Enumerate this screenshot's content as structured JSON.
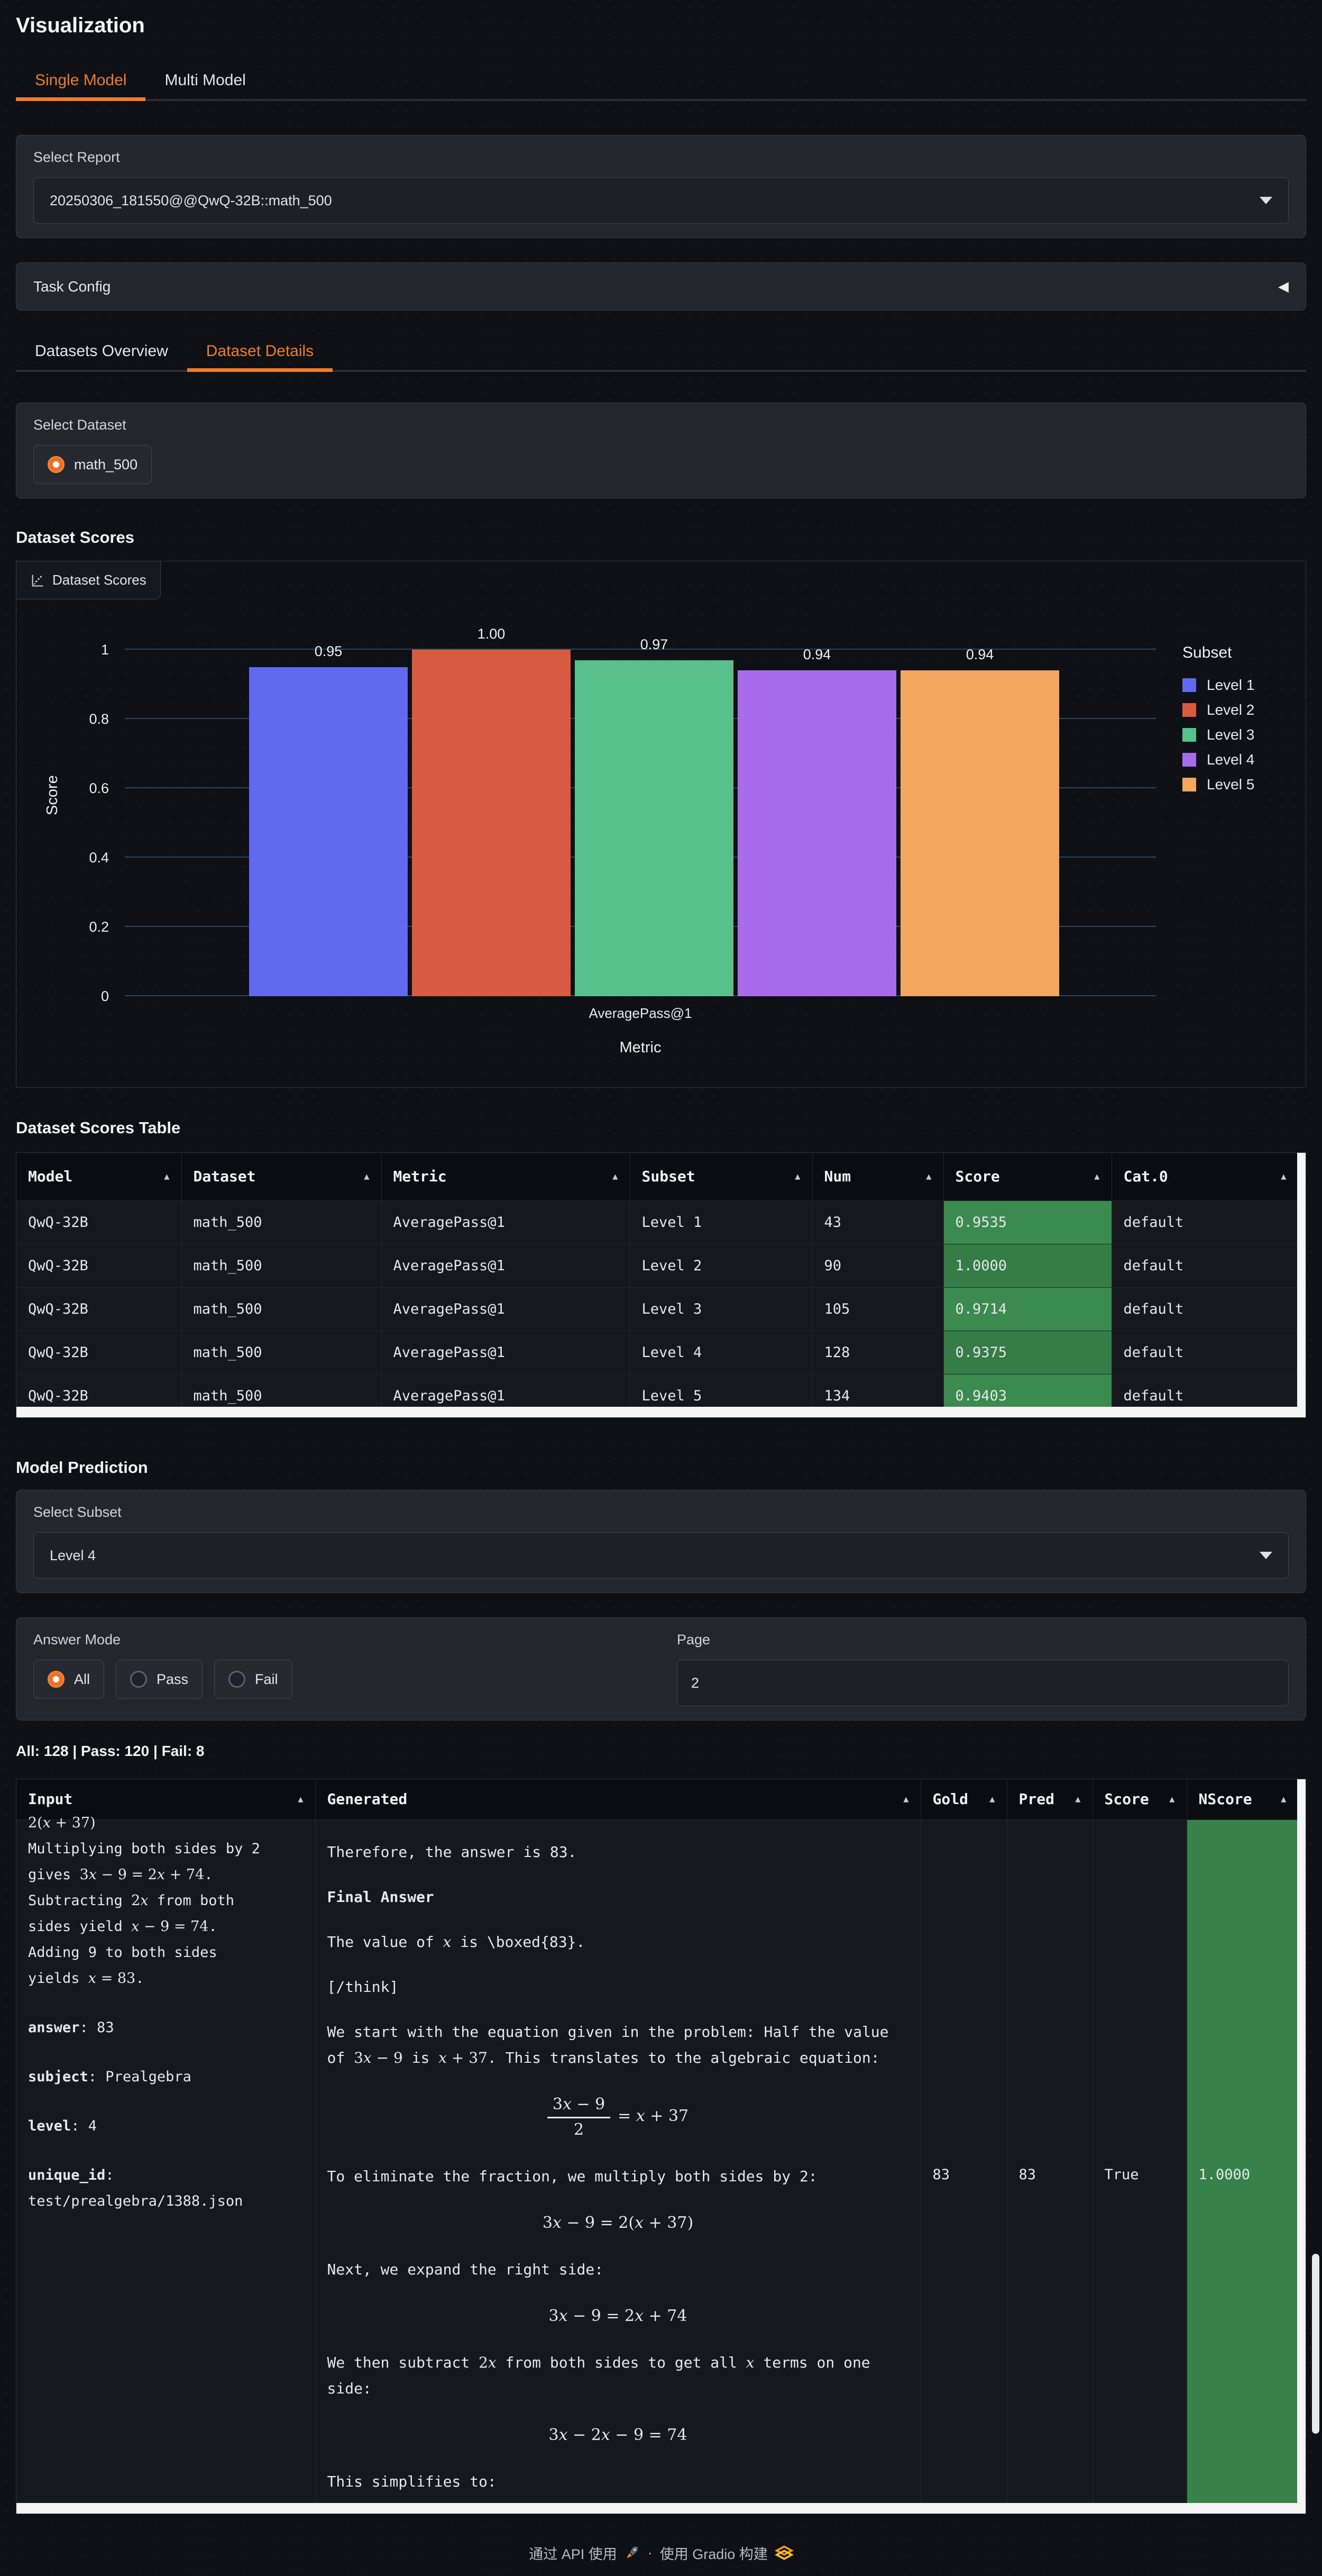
{
  "header": {
    "title": "Visualization",
    "tabs": [
      "Single Model",
      "Multi Model"
    ],
    "active_tab": 0
  },
  "report": {
    "label": "Select Report",
    "value": "20250306_181550@@QwQ-32B::math_500"
  },
  "task_config": {
    "label": "Task Config",
    "collapse_icon": "◀"
  },
  "detail_tabs": {
    "tabs": [
      "Datasets Overview",
      "Dataset Details"
    ],
    "active": 1
  },
  "dataset_select": {
    "label": "Select Dataset",
    "options": [
      {
        "label": "math_500",
        "selected": true
      }
    ]
  },
  "scores_section": {
    "heading": "Dataset Scores",
    "panel_tab": "Dataset Scores"
  },
  "chart_data": {
    "type": "bar",
    "title": "Dataset Scores",
    "categories": [
      "AveragePass@1"
    ],
    "xlabel": "Metric",
    "ylabel": "Score",
    "ylim": [
      0,
      1
    ],
    "yticks": [
      "0",
      "0.2",
      "0.4",
      "0.6",
      "0.8",
      "1"
    ],
    "grid": true,
    "legend_title": "Subset",
    "legend_position": "right",
    "series": [
      {
        "name": "Level 1",
        "values": [
          0.95
        ],
        "label": "0.95",
        "color": "#6069f0"
      },
      {
        "name": "Level 2",
        "values": [
          1.0
        ],
        "label": "1.00",
        "color": "#d85b41"
      },
      {
        "name": "Level 3",
        "values": [
          0.97
        ],
        "label": "0.97",
        "color": "#58c08b"
      },
      {
        "name": "Level 4",
        "values": [
          0.94
        ],
        "label": "0.94",
        "color": "#a76cec"
      },
      {
        "name": "Level 5",
        "values": [
          0.94
        ],
        "label": "0.94",
        "color": "#f3a660"
      }
    ]
  },
  "scores_table": {
    "heading": "Dataset Scores Table",
    "columns": [
      "Model",
      "Dataset",
      "Metric",
      "Subset",
      "Num",
      "Score",
      "Cat.0"
    ],
    "sort_icon": "▲",
    "rows": [
      [
        "QwQ-32B",
        "math_500",
        "AveragePass@1",
        "Level 1",
        "43",
        "0.9535",
        "default"
      ],
      [
        "QwQ-32B",
        "math_500",
        "AveragePass@1",
        "Level 2",
        "90",
        "1.0000",
        "default"
      ],
      [
        "QwQ-32B",
        "math_500",
        "AveragePass@1",
        "Level 3",
        "105",
        "0.9714",
        "default"
      ],
      [
        "QwQ-32B",
        "math_500",
        "AveragePass@1",
        "Level 4",
        "128",
        "0.9375",
        "default"
      ],
      [
        "QwQ-32B",
        "math_500",
        "AveragePass@1",
        "Level 5",
        "134",
        "0.9403",
        "default"
      ]
    ]
  },
  "prediction": {
    "heading": "Model Prediction",
    "subset_label": "Select Subset",
    "subset_value": "Level 4",
    "answer_mode_label": "Answer Mode",
    "answer_modes": [
      "All",
      "Pass",
      "Fail"
    ],
    "selected_mode": 0,
    "page_label": "Page",
    "page_value": "2",
    "stats": "All: 128 | Pass: 120 | Fail: 8"
  },
  "prediction_table": {
    "columns": [
      "Input",
      "Generated",
      "Gold",
      "Pred",
      "Score",
      "NScore"
    ],
    "sort_icon": "▲",
    "row": {
      "input_blocks": [
        {
          "type": "clip",
          "text": "§2(x + 37)§"
        },
        {
          "type": "line",
          "text": "Multiplying both sides by 2"
        },
        {
          "type": "line",
          "text": "gives §3x − 9 = 2x + 74§."
        },
        {
          "type": "line",
          "text": "Subtracting §2x§ from both"
        },
        {
          "type": "line",
          "text": "sides yield §x − 9 = 74§."
        },
        {
          "type": "line",
          "text": "Adding 9 to both sides"
        },
        {
          "type": "line",
          "text": "yields §x = ⟦83⟧§."
        },
        {
          "type": "gap"
        },
        {
          "type": "line",
          "text": "**answer**: 83"
        },
        {
          "type": "gap"
        },
        {
          "type": "line",
          "text": "**subject**: Prealgebra"
        },
        {
          "type": "gap"
        },
        {
          "type": "line",
          "text": "**level**: 4"
        },
        {
          "type": "gap"
        },
        {
          "type": "line",
          "text": "**unique_id**:"
        },
        {
          "type": "line",
          "text": "test/prealgebra/1388.json"
        }
      ],
      "generated_blocks": [
        {
          "type": "p",
          "text": "Therefore, the answer is 83."
        },
        {
          "type": "p",
          "text": "**Final Answer**"
        },
        {
          "type": "p",
          "text": "The value of §x§ is \\boxed{83}."
        },
        {
          "type": "p",
          "text": "[/think]"
        },
        {
          "type": "p",
          "text": "We start with the equation given in the problem: Half the value of §3x − 9§ is §x + 37§. This translates to the algebraic equation:"
        },
        {
          "type": "fraceq",
          "num": "3x − 9",
          "den": "2",
          "rhs": "= x + 37"
        },
        {
          "type": "p",
          "text": "To eliminate the fraction, we multiply both sides by 2:"
        },
        {
          "type": "eq",
          "text": "3x − 9 = 2(x + 37)"
        },
        {
          "type": "p",
          "text": "Next, we expand the right side:"
        },
        {
          "type": "eq",
          "text": "3x − 9 = 2x + 74"
        },
        {
          "type": "p",
          "text": "We then subtract §2x§ from both sides to get all §x§ terms on one side:"
        },
        {
          "type": "eq",
          "text": "3x − 2x − 9 = 74"
        },
        {
          "type": "p",
          "text": "This simplifies to:"
        }
      ],
      "gold": "83",
      "pred": "83",
      "score": "True",
      "nscore": "1.0000"
    }
  },
  "footer": {
    "text_api": "通过 API 使用",
    "separator": "·",
    "text_built": "使用 Gradio 构建"
  }
}
